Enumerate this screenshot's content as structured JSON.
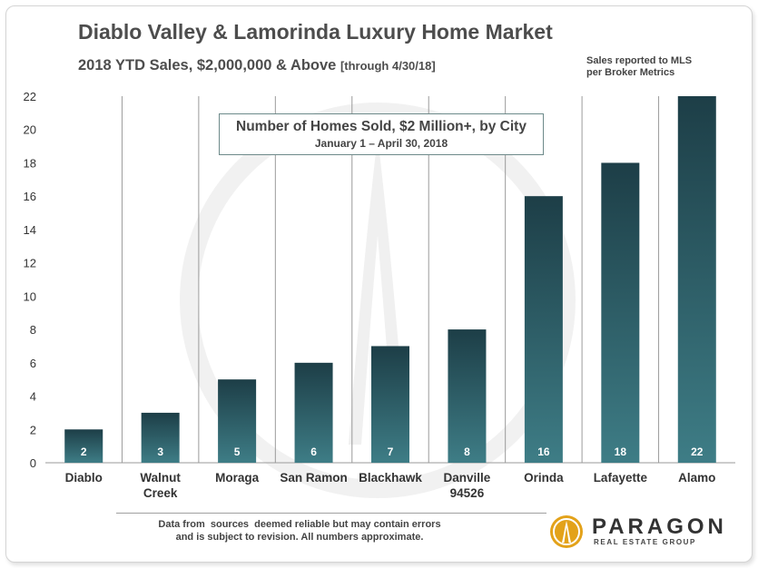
{
  "header": {
    "title": "Diablo Valley & Lamorinda Luxury Home Market",
    "subtitle": "2018 YTD Sales, $2,000,000 & Above",
    "subtitle_suffix": "[through 4/30/18]",
    "source_note_line1": "Sales reported to MLS",
    "source_note_line2": "per Broker Metrics"
  },
  "chart_box": {
    "title": "Number of Homes Sold, $2 Million+, by City",
    "subtitle": "January 1 – April 30, 2018"
  },
  "footer": {
    "disclaimer_line1": "Data from  sources  deemed reliable but may contain errors",
    "disclaimer_line2": "and is subject to revision. All numbers approximate.",
    "logo_name": "PARAGON",
    "logo_tagline": "REAL ESTATE GROUP"
  },
  "colors": {
    "bar_top": "#1d3e47",
    "bar_bottom": "#3e7d86",
    "logo_gold": "#e3a21a"
  },
  "chart_data": {
    "type": "bar",
    "categories": [
      [
        "Diablo"
      ],
      [
        "Walnut",
        "Creek"
      ],
      [
        "Moraga"
      ],
      [
        "San Ramon"
      ],
      [
        "Blackhawk"
      ],
      [
        "Danville",
        "94526"
      ],
      [
        "Orinda"
      ],
      [
        "Lafayette"
      ],
      [
        "Alamo"
      ]
    ],
    "values": [
      2,
      3,
      5,
      6,
      7,
      8,
      16,
      18,
      22
    ],
    "ylim": [
      0,
      22
    ],
    "yticks": [
      0,
      2,
      4,
      6,
      8,
      10,
      12,
      14,
      16,
      18,
      20,
      22
    ],
    "data_labels": true,
    "grid": "vertical separators between categories",
    "legend": "none"
  }
}
